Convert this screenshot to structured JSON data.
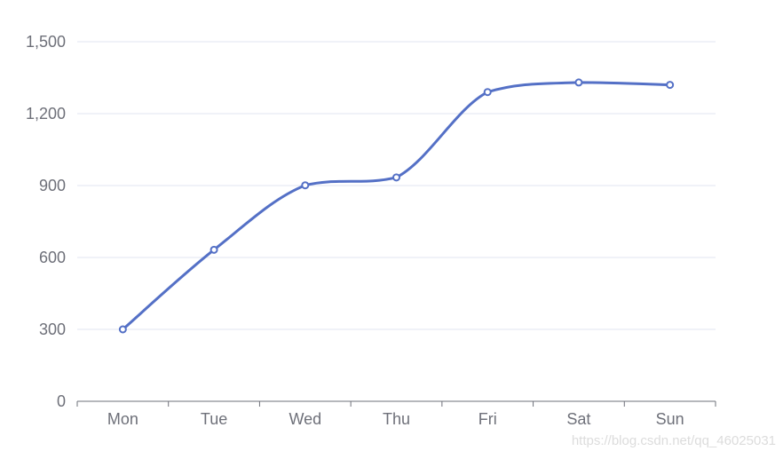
{
  "chart_data": {
    "type": "line",
    "categories": [
      "Mon",
      "Tue",
      "Wed",
      "Thu",
      "Fri",
      "Sat",
      "Sun"
    ],
    "series": [
      {
        "values": [
          300,
          632,
          901,
          934,
          1290,
          1330,
          1320
        ],
        "color": "#5470c6"
      }
    ],
    "smooth": true,
    "ylim": [
      0,
      1500
    ],
    "yticks": [
      "0",
      "300",
      "600",
      "900",
      "1,200",
      "1,500"
    ],
    "grid": true
  },
  "watermark": "https://blog.csdn.net/qq_46025031",
  "colors": {
    "line": "#5470c6",
    "gridline": "#e0e6f1",
    "axis": "#6e7079",
    "label": "#6e7079"
  }
}
